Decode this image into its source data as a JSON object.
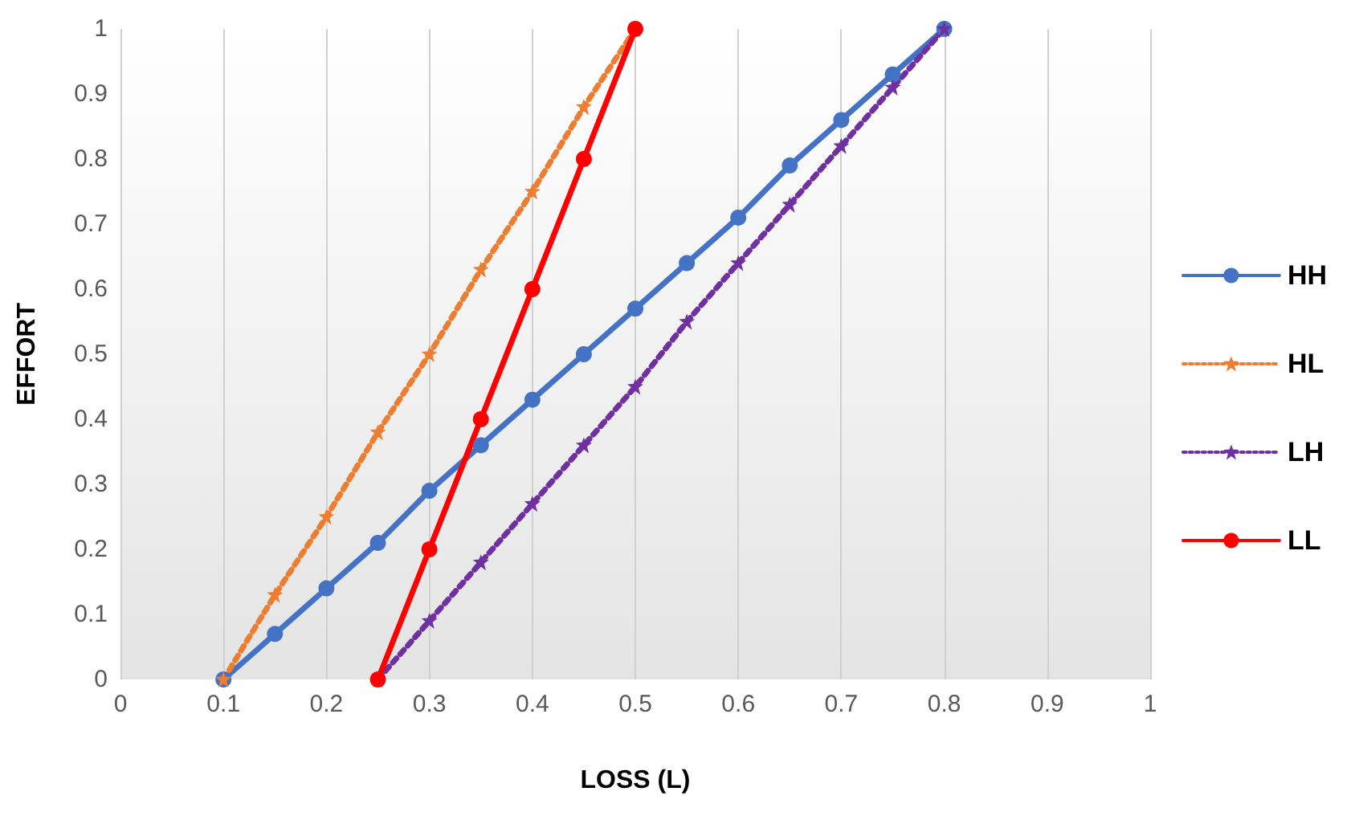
{
  "chart_data": {
    "type": "line",
    "xlabel": "LOSS (L)",
    "ylabel": "EFFORT",
    "xlim": [
      0,
      1
    ],
    "xticks": [
      0,
      0.1,
      0.2,
      0.3,
      0.4,
      0.5,
      0.6,
      0.7,
      0.8,
      0.9,
      1
    ],
    "ylim": [
      0,
      1
    ],
    "yticks": [
      0,
      0.1,
      0.2,
      0.3,
      0.4,
      0.5,
      0.6,
      0.7,
      0.8,
      0.9,
      1
    ],
    "grid": "x",
    "legend": "right",
    "series": [
      {
        "name": "HH",
        "color": "#4472c4",
        "marker": "circle",
        "line_style": "solid",
        "x": [
          0.1,
          0.15,
          0.2,
          0.25,
          0.3,
          0.35,
          0.4,
          0.45,
          0.5,
          0.55,
          0.6,
          0.65,
          0.7,
          0.75,
          0.8
        ],
        "values": [
          0,
          0.07,
          0.14,
          0.21,
          0.29,
          0.36,
          0.43,
          0.5,
          0.57,
          0.64,
          0.71,
          0.79,
          0.86,
          0.93,
          1
        ]
      },
      {
        "name": "HL",
        "color": "#ed7d31",
        "marker": "star",
        "line_style": "dotted",
        "x": [
          0.1,
          0.15,
          0.2,
          0.25,
          0.3,
          0.35,
          0.4,
          0.45,
          0.5
        ],
        "values": [
          0,
          0.13,
          0.25,
          0.38,
          0.5,
          0.63,
          0.75,
          0.88,
          1
        ]
      },
      {
        "name": "LH",
        "color": "#7030a0",
        "marker": "star",
        "line_style": "dotted",
        "x": [
          0.25,
          0.3,
          0.35,
          0.4,
          0.45,
          0.5,
          0.55,
          0.6,
          0.65,
          0.7,
          0.75,
          0.8
        ],
        "values": [
          0,
          0.09,
          0.18,
          0.27,
          0.36,
          0.45,
          0.55,
          0.64,
          0.73,
          0.82,
          0.91,
          1
        ]
      },
      {
        "name": "LL",
        "color": "#ff0000",
        "marker": "circle",
        "line_style": "solid",
        "x": [
          0.25,
          0.3,
          0.35,
          0.4,
          0.45,
          0.5
        ],
        "values": [
          0,
          0.2,
          0.4,
          0.6,
          0.8,
          1
        ]
      }
    ]
  }
}
